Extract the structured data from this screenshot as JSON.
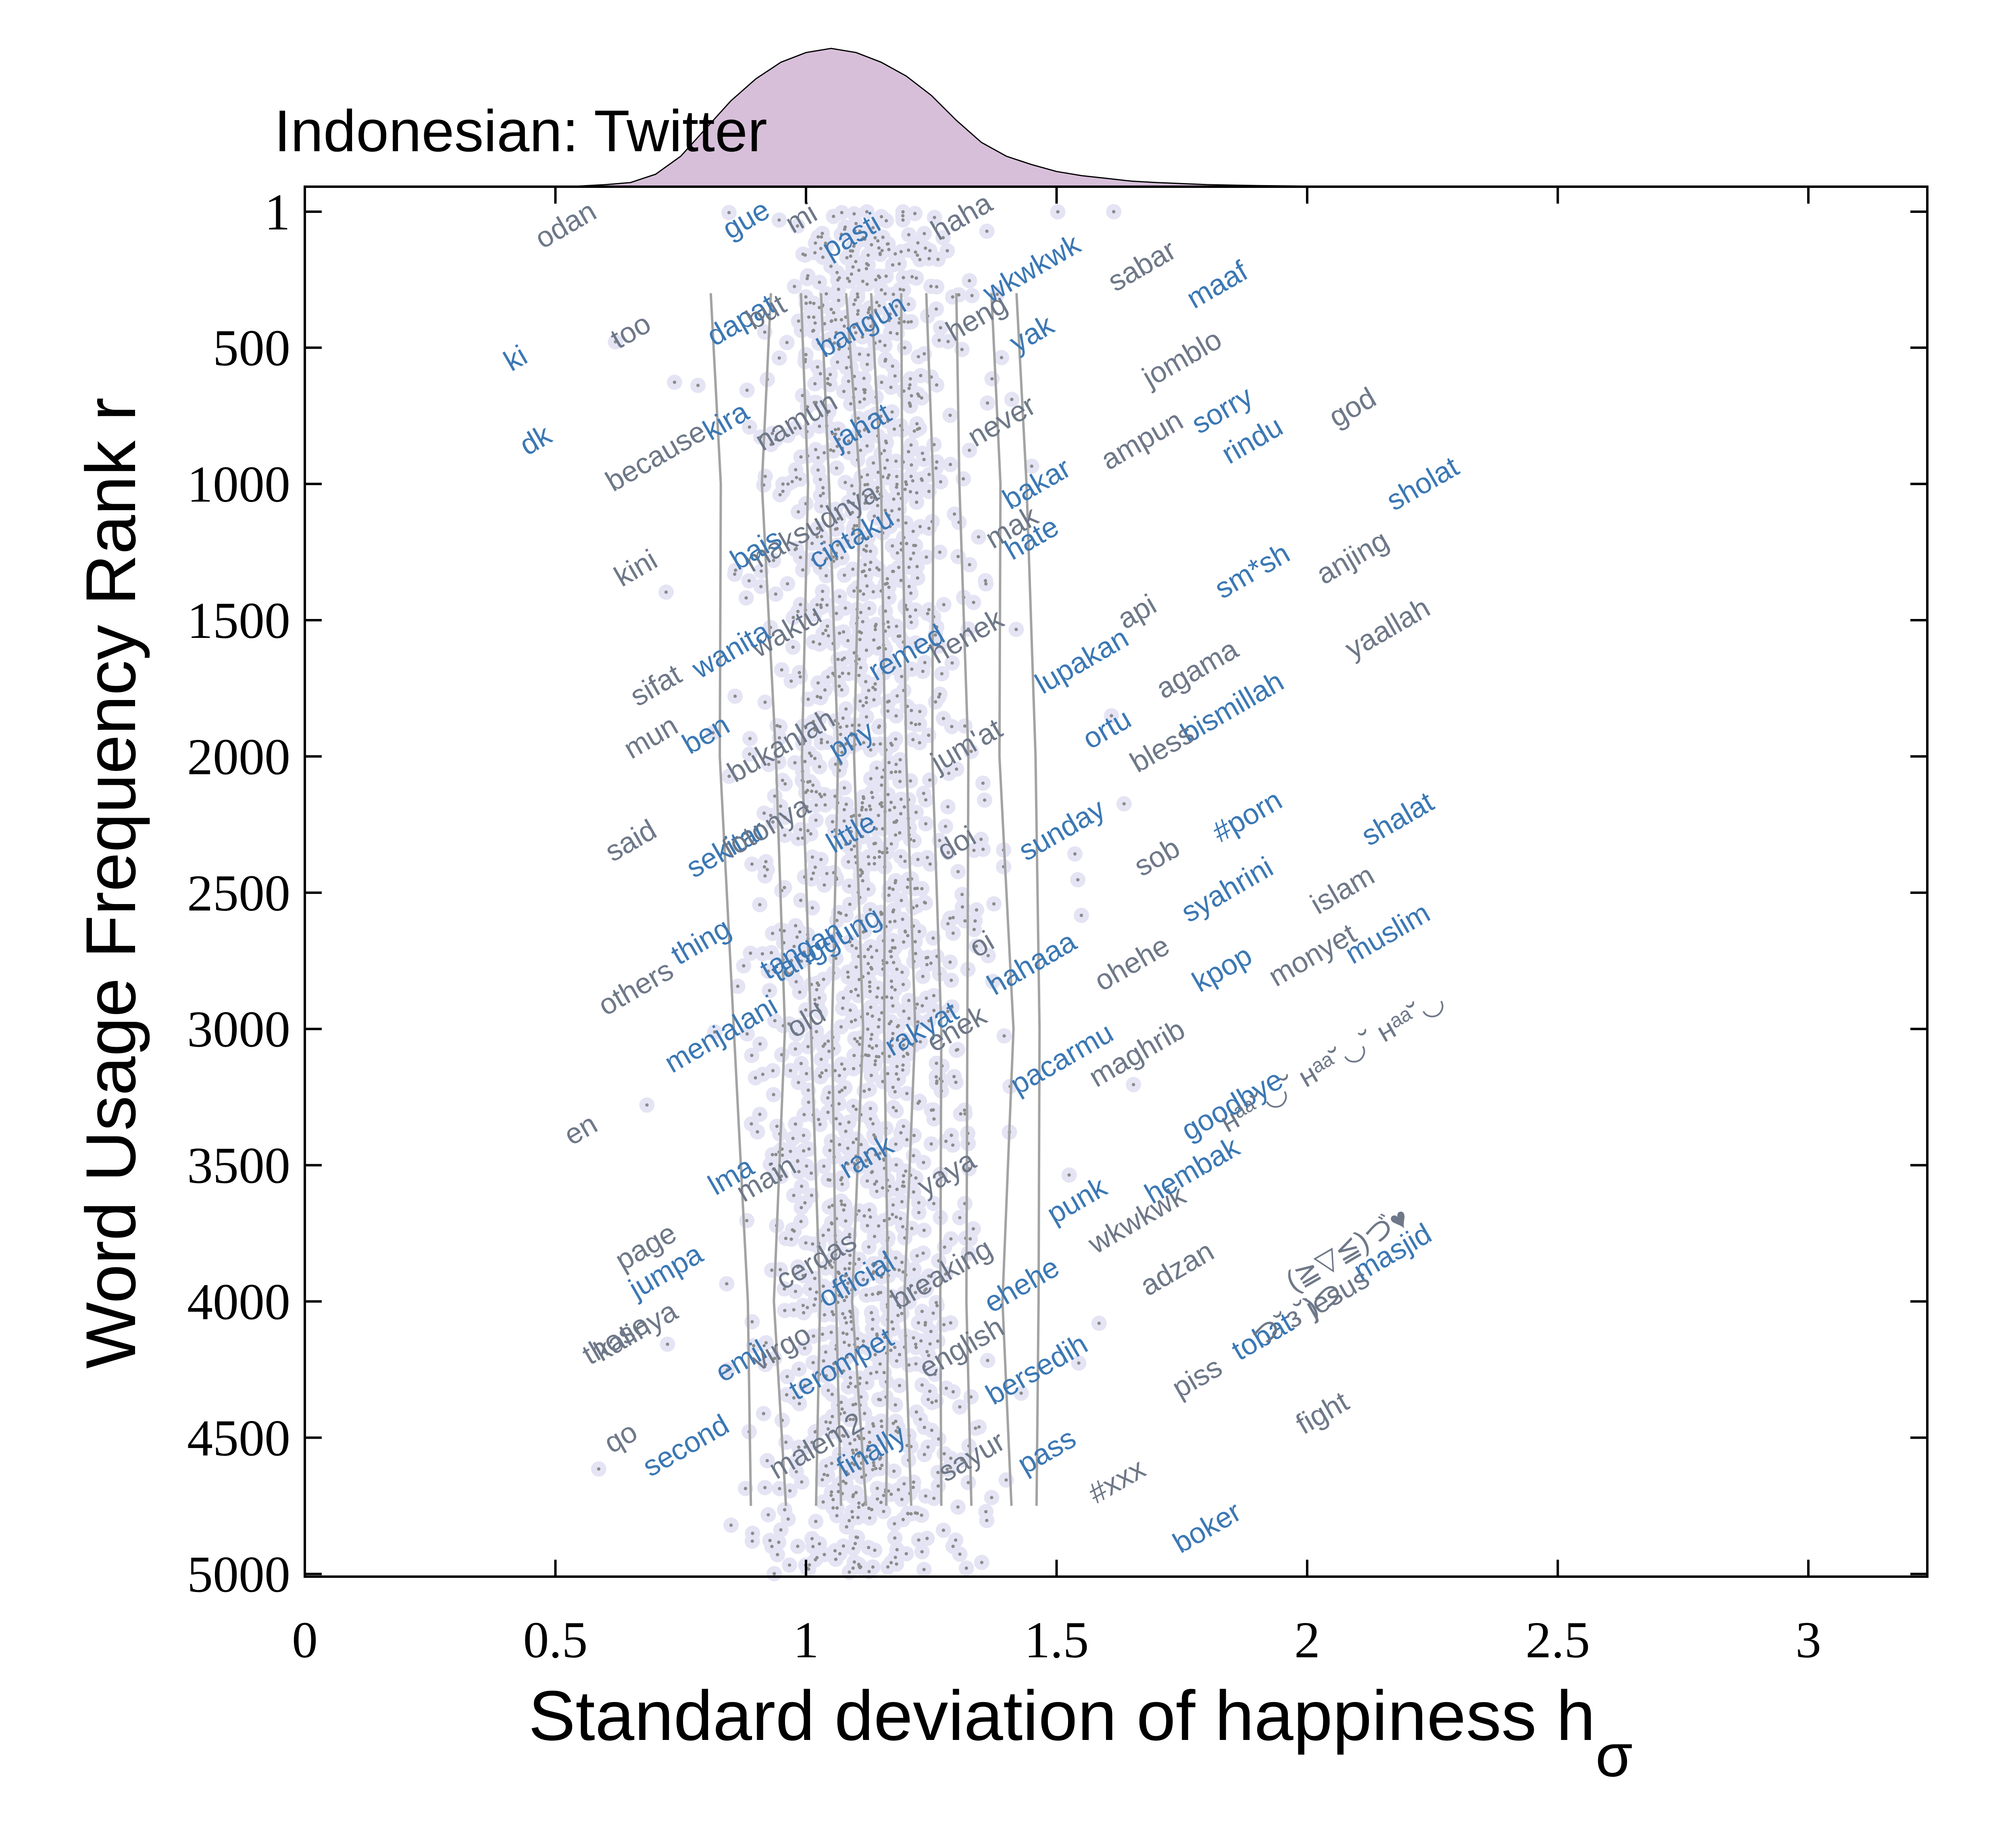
{
  "chart_data": {
    "type": "scatter",
    "title": "Indonesian: Twitter",
    "xlabel": "Standard deviation of happiness h",
    "xlabel_subscript": "σ",
    "ylabel": "Word Usage Frequency Rank r",
    "xlim": [
      0,
      3.25
    ],
    "ylim": [
      5040,
      0
    ],
    "y_inverted": true,
    "xticks": [
      0,
      0.5,
      1,
      1.5,
      2,
      2.5,
      3
    ],
    "xtick_labels": [
      "0",
      "0.5",
      "1",
      "1.5",
      "2",
      "2.5",
      "3"
    ],
    "yticks": [
      1,
      500,
      1000,
      1500,
      2000,
      2500,
      3000,
      3500,
      4000,
      4500,
      5000
    ],
    "ytick_labels": [
      "1",
      "500",
      "1000",
      "1500",
      "2000",
      "2500",
      "3000",
      "3500",
      "4000",
      "4500",
      "5000"
    ],
    "grid": false,
    "colors": {
      "density_fill": "#d7bfd9",
      "dots": "#8c8c8c",
      "halo": "#e4e4f4",
      "contours": "#a3a3a3",
      "word_blue": "#3b78b4",
      "word_gray": "#6e7888"
    },
    "marginal_density": {
      "x": [
        0.5,
        0.55,
        0.6,
        0.65,
        0.7,
        0.75,
        0.8,
        0.85,
        0.9,
        0.95,
        1.0,
        1.05,
        1.1,
        1.15,
        1.2,
        1.25,
        1.3,
        1.35,
        1.4,
        1.45,
        1.5,
        1.55,
        1.6,
        1.65,
        1.7,
        1.8,
        1.9,
        2.0,
        2.1,
        2.2,
        2.3
      ],
      "density": [
        0.0,
        0.005,
        0.015,
        0.03,
        0.09,
        0.22,
        0.42,
        0.62,
        0.78,
        0.9,
        0.97,
        1.0,
        0.97,
        0.9,
        0.8,
        0.66,
        0.48,
        0.32,
        0.22,
        0.16,
        0.11,
        0.08,
        0.06,
        0.04,
        0.03,
        0.015,
        0.008,
        0.004,
        0.002,
        0.001,
        0.0
      ]
    },
    "contour_lines": [
      {
        "rank": [
          300,
          1000,
          2000,
          3000,
          4000,
          4750
        ],
        "x": [
          0.81,
          0.83,
          0.82,
          0.86,
          0.88,
          0.89
        ]
      },
      {
        "rank": [
          300,
          1000,
          2000,
          3000,
          4000,
          4750
        ],
        "x": [
          0.93,
          0.92,
          0.94,
          0.95,
          0.94,
          0.96
        ]
      },
      {
        "rank": [
          300,
          1000,
          2000,
          3000,
          4000,
          4750
        ],
        "x": [
          0.99,
          1.0,
          1.0,
          1.01,
          1.02,
          1.02
        ]
      },
      {
        "rank": [
          300,
          1000,
          2000,
          3000,
          4000,
          4750
        ],
        "x": [
          1.03,
          1.05,
          1.06,
          1.06,
          1.06,
          1.07
        ]
      },
      {
        "rank": [
          300,
          1000,
          2000,
          3000,
          4000,
          4750
        ],
        "x": [
          1.08,
          1.1,
          1.1,
          1.11,
          1.1,
          1.12
        ]
      },
      {
        "rank": [
          300,
          1000,
          2000,
          3000,
          4000,
          4750
        ],
        "x": [
          1.13,
          1.15,
          1.15,
          1.16,
          1.16,
          1.16
        ]
      },
      {
        "rank": [
          300,
          1000,
          2000,
          3000,
          4000,
          4750
        ],
        "x": [
          1.19,
          1.2,
          1.2,
          1.21,
          1.2,
          1.21
        ]
      },
      {
        "rank": [
          300,
          1000,
          2000,
          3000,
          4000,
          4750
        ],
        "x": [
          1.24,
          1.25,
          1.26,
          1.27,
          1.26,
          1.27
        ]
      },
      {
        "rank": [
          300,
          1000,
          2000,
          3000,
          4000,
          4750
        ],
        "x": [
          1.3,
          1.31,
          1.32,
          1.33,
          1.32,
          1.33
        ]
      },
      {
        "rank": [
          300,
          1000,
          2000,
          3000,
          4000,
          4750
        ],
        "x": [
          1.37,
          1.38,
          1.39,
          1.41,
          1.4,
          1.41
        ]
      },
      {
        "rank": [
          300,
          1000,
          2000,
          3000,
          4000,
          4750
        ],
        "x": [
          1.42,
          1.44,
          1.45,
          1.47,
          1.46,
          1.46
        ]
      }
    ],
    "words": [
      {
        "text": "odan",
        "x": 0.53,
        "rank": 80,
        "color": "gray"
      },
      {
        "text": "gue",
        "x": 0.89,
        "rank": 60,
        "color": "blue"
      },
      {
        "text": "mi",
        "x": 1.0,
        "rank": 55,
        "color": "gray"
      },
      {
        "text": "pasti",
        "x": 1.1,
        "rank": 120,
        "color": "blue"
      },
      {
        "text": "haha",
        "x": 1.32,
        "rank": 50,
        "color": "gray"
      },
      {
        "text": "wkwkwk",
        "x": 1.46,
        "rank": 240,
        "color": "blue"
      },
      {
        "text": "sabar",
        "x": 1.68,
        "rank": 230,
        "color": "gray"
      },
      {
        "text": "maaf",
        "x": 1.83,
        "rank": 300,
        "color": "blue"
      },
      {
        "text": "ki",
        "x": 0.43,
        "rank": 570,
        "color": "blue"
      },
      {
        "text": "too",
        "x": 0.66,
        "rank": 470,
        "color": "gray"
      },
      {
        "text": "dapat",
        "x": 0.88,
        "rank": 430,
        "color": "blue"
      },
      {
        "text": "but",
        "x": 0.93,
        "rank": 400,
        "color": "gray"
      },
      {
        "text": "bangun",
        "x": 1.12,
        "rank": 450,
        "color": "blue"
      },
      {
        "text": "heng",
        "x": 1.35,
        "rank": 420,
        "color": "gray"
      },
      {
        "text": "yak",
        "x": 1.46,
        "rank": 480,
        "color": "blue"
      },
      {
        "text": "jomblo",
        "x": 1.76,
        "rank": 570,
        "color": "gray"
      },
      {
        "text": "god",
        "x": 2.1,
        "rank": 750,
        "color": "gray"
      },
      {
        "text": "dk",
        "x": 0.47,
        "rank": 870,
        "color": "blue"
      },
      {
        "text": "because",
        "x": 0.71,
        "rank": 930,
        "color": "gray"
      },
      {
        "text": "kira",
        "x": 0.85,
        "rank": 800,
        "color": "blue"
      },
      {
        "text": "namun",
        "x": 0.99,
        "rank": 800,
        "color": "gray"
      },
      {
        "text": "jahat",
        "x": 1.12,
        "rank": 820,
        "color": "blue"
      },
      {
        "text": "never",
        "x": 1.4,
        "rank": 800,
        "color": "gray"
      },
      {
        "text": "ampun",
        "x": 1.68,
        "rank": 870,
        "color": "gray"
      },
      {
        "text": "sorry",
        "x": 1.84,
        "rank": 760,
        "color": "blue"
      },
      {
        "text": "rindu",
        "x": 1.9,
        "rank": 870,
        "color": "blue"
      },
      {
        "text": "sholat",
        "x": 2.24,
        "rank": 1030,
        "color": "blue"
      },
      {
        "text": "bakar",
        "x": 1.47,
        "rank": 1030,
        "color": "blue"
      },
      {
        "text": "maksudnya",
        "x": 1.02,
        "rank": 1190,
        "color": "gray"
      },
      {
        "text": "cintaku",
        "x": 1.1,
        "rank": 1230,
        "color": "blue"
      },
      {
        "text": "bais",
        "x": 0.91,
        "rank": 1270,
        "color": "blue"
      },
      {
        "text": "mak",
        "x": 1.42,
        "rank": 1190,
        "color": "gray"
      },
      {
        "text": "hate",
        "x": 1.46,
        "rank": 1230,
        "color": "blue"
      },
      {
        "text": "kini",
        "x": 0.67,
        "rank": 1340,
        "color": "gray"
      },
      {
        "text": "sm*sh",
        "x": 1.9,
        "rank": 1350,
        "color": "blue"
      },
      {
        "text": "anjing",
        "x": 2.1,
        "rank": 1300,
        "color": "gray"
      },
      {
        "text": "api",
        "x": 1.67,
        "rank": 1500,
        "color": "gray"
      },
      {
        "text": "waktu",
        "x": 0.97,
        "rank": 1570,
        "color": "gray"
      },
      {
        "text": "wanita",
        "x": 0.86,
        "rank": 1640,
        "color": "blue"
      },
      {
        "text": "remed",
        "x": 1.21,
        "rank": 1650,
        "color": "blue"
      },
      {
        "text": "henek",
        "x": 1.33,
        "rank": 1590,
        "color": "gray"
      },
      {
        "text": "lupakan",
        "x": 1.56,
        "rank": 1680,
        "color": "blue"
      },
      {
        "text": "yaallah",
        "x": 2.17,
        "rank": 1560,
        "color": "gray"
      },
      {
        "text": "sifat",
        "x": 0.71,
        "rank": 1770,
        "color": "gray"
      },
      {
        "text": "agama",
        "x": 1.79,
        "rank": 1710,
        "color": "gray"
      },
      {
        "text": "bismillah",
        "x": 1.86,
        "rank": 1850,
        "color": "blue"
      },
      {
        "text": "mun",
        "x": 0.7,
        "rank": 1960,
        "color": "gray"
      },
      {
        "text": "ben",
        "x": 0.81,
        "rank": 1950,
        "color": "blue"
      },
      {
        "text": "bukanlah",
        "x": 0.96,
        "rank": 1990,
        "color": "gray"
      },
      {
        "text": "pny",
        "x": 1.1,
        "rank": 1970,
        "color": "blue"
      },
      {
        "text": "jum'at",
        "x": 1.33,
        "rank": 1990,
        "color": "gray"
      },
      {
        "text": "ortu",
        "x": 1.61,
        "rank": 1930,
        "color": "blue"
      },
      {
        "text": "bless",
        "x": 1.72,
        "rank": 2000,
        "color": "gray"
      },
      {
        "text": "said",
        "x": 0.66,
        "rank": 2340,
        "color": "gray"
      },
      {
        "text": "sekitar",
        "x": 0.85,
        "rank": 2370,
        "color": "blue"
      },
      {
        "text": "fotonya",
        "x": 0.93,
        "rank": 2290,
        "color": "gray"
      },
      {
        "text": "little",
        "x": 1.1,
        "rank": 2310,
        "color": "blue"
      },
      {
        "text": "doi",
        "x": 1.31,
        "rank": 2350,
        "color": "gray"
      },
      {
        "text": "sunday",
        "x": 1.52,
        "rank": 2300,
        "color": "blue"
      },
      {
        "text": "#porn",
        "x": 1.89,
        "rank": 2250,
        "color": "blue"
      },
      {
        "text": "shalat",
        "x": 2.19,
        "rank": 2260,
        "color": "blue"
      },
      {
        "text": "sob",
        "x": 1.71,
        "rank": 2400,
        "color": "gray"
      },
      {
        "text": "syahrini",
        "x": 1.85,
        "rank": 2520,
        "color": "blue"
      },
      {
        "text": "islam",
        "x": 2.08,
        "rank": 2520,
        "color": "gray"
      },
      {
        "text": "muslim",
        "x": 2.17,
        "rank": 2680,
        "color": "blue"
      },
      {
        "text": "monyet",
        "x": 2.02,
        "rank": 2760,
        "color": "gray"
      },
      {
        "text": "kpop",
        "x": 1.84,
        "rank": 2810,
        "color": "blue"
      },
      {
        "text": "thing",
        "x": 0.8,
        "rank": 2710,
        "color": "blue"
      },
      {
        "text": "tanggung",
        "x": 1.05,
        "rank": 2720,
        "color": "blue"
      },
      {
        "text": "tangan",
        "x": 1.0,
        "rank": 2740,
        "color": "blue"
      },
      {
        "text": "oi",
        "x": 1.36,
        "rank": 2720,
        "color": "gray"
      },
      {
        "text": "hahaaa",
        "x": 1.46,
        "rank": 2790,
        "color": "blue"
      },
      {
        "text": "ohehe",
        "x": 1.66,
        "rank": 2790,
        "color": "gray"
      },
      {
        "text": "others",
        "x": 0.67,
        "rank": 2880,
        "color": "gray"
      },
      {
        "text": "menjalani",
        "x": 0.84,
        "rank": 3050,
        "color": "blue"
      },
      {
        "text": "old",
        "x": 1.01,
        "rank": 3000,
        "color": "gray"
      },
      {
        "text": "rakyat",
        "x": 1.24,
        "rank": 3030,
        "color": "blue"
      },
      {
        "text": "enek",
        "x": 1.31,
        "rank": 3030,
        "color": "gray"
      },
      {
        "text": "pacarmu",
        "x": 1.52,
        "rank": 3140,
        "color": "blue"
      },
      {
        "text": "maghrib",
        "x": 1.67,
        "rank": 3120,
        "color": "gray"
      },
      {
        "text": "goodbye",
        "x": 1.86,
        "rank": 3310,
        "color": "blue"
      },
      {
        "text": "en",
        "x": 0.56,
        "rank": 3400,
        "color": "gray"
      },
      {
        "text": "main",
        "x": 0.93,
        "rank": 3580,
        "color": "gray"
      },
      {
        "text": "lma",
        "x": 0.86,
        "rank": 3570,
        "color": "blue"
      },
      {
        "text": "rank",
        "x": 1.13,
        "rank": 3500,
        "color": "blue"
      },
      {
        "text": "yaya",
        "x": 1.29,
        "rank": 3560,
        "color": "gray"
      },
      {
        "text": "punk",
        "x": 1.55,
        "rank": 3660,
        "color": "blue"
      },
      {
        "text": "wkwkwk",
        "x": 1.67,
        "rank": 3730,
        "color": "gray"
      },
      {
        "text": "hembak",
        "x": 1.78,
        "rank": 3550,
        "color": "blue"
      },
      {
        "text": "page",
        "x": 0.69,
        "rank": 3830,
        "color": "gray"
      },
      {
        "text": "jumpa",
        "x": 0.73,
        "rank": 3920,
        "color": "blue"
      },
      {
        "text": "cerdas",
        "x": 1.03,
        "rank": 3880,
        "color": "gray"
      },
      {
        "text": "official",
        "x": 1.11,
        "rank": 3950,
        "color": "blue"
      },
      {
        "text": "breaking",
        "x": 1.28,
        "rank": 3930,
        "color": "gray"
      },
      {
        "text": "ehehe",
        "x": 1.44,
        "rank": 3970,
        "color": "blue"
      },
      {
        "text": "adzan",
        "x": 1.75,
        "rank": 3910,
        "color": "gray"
      },
      {
        "text": "masjid",
        "x": 2.18,
        "rank": 3850,
        "color": "blue"
      },
      {
        "text": "jesus",
        "x": 2.07,
        "rank": 4000,
        "color": "gray"
      },
      {
        "text": "tobat",
        "x": 1.92,
        "rank": 4160,
        "color": "blue"
      },
      {
        "text": "piss",
        "x": 1.79,
        "rank": 4310,
        "color": "gray"
      },
      {
        "text": "kalinya",
        "x": 0.67,
        "rank": 4140,
        "color": "gray"
      },
      {
        "text": "those",
        "x": 0.63,
        "rank": 4170,
        "color": "gray"
      },
      {
        "text": "emil",
        "x": 0.88,
        "rank": 4250,
        "color": "blue"
      },
      {
        "text": "virgo",
        "x": 0.96,
        "rank": 4200,
        "color": "gray"
      },
      {
        "text": "terompet",
        "x": 1.08,
        "rank": 4260,
        "color": "blue"
      },
      {
        "text": "english",
        "x": 1.32,
        "rank": 4200,
        "color": "gray"
      },
      {
        "text": "bersedih",
        "x": 1.47,
        "rank": 4280,
        "color": "blue"
      },
      {
        "text": "fight",
        "x": 2.04,
        "rank": 4440,
        "color": "gray"
      },
      {
        "text": "qo",
        "x": 0.64,
        "rank": 4530,
        "color": "gray"
      },
      {
        "text": "second",
        "x": 0.77,
        "rank": 4560,
        "color": "blue"
      },
      {
        "text": "malem2",
        "x": 1.03,
        "rank": 4560,
        "color": "gray"
      },
      {
        "text": "finally",
        "x": 1.14,
        "rank": 4580,
        "color": "blue"
      },
      {
        "text": "sayur",
        "x": 1.34,
        "rank": 4600,
        "color": "gray"
      },
      {
        "text": "pass",
        "x": 1.49,
        "rank": 4580,
        "color": "blue"
      },
      {
        "text": "#xxx",
        "x": 1.63,
        "rank": 4690,
        "color": "gray"
      },
      {
        "text": "boker",
        "x": 1.81,
        "rank": 4860,
        "color": "blue"
      },
      {
        "text": "ʜᵃᵃ˘◡˘ ʜᵃᵃ˘◡˘ ʜᵃᵃ˘◡",
        "x": 2.06,
        "rank": 3150,
        "color": "gray"
      },
      {
        "text": "つ˘з˘)つ",
        "x": 1.99,
        "rank": 4080,
        "color": "gray"
      },
      {
        "text": "(≧▽≦)づ♥",
        "x": 2.09,
        "rank": 3840,
        "color": "gray"
      }
    ]
  }
}
